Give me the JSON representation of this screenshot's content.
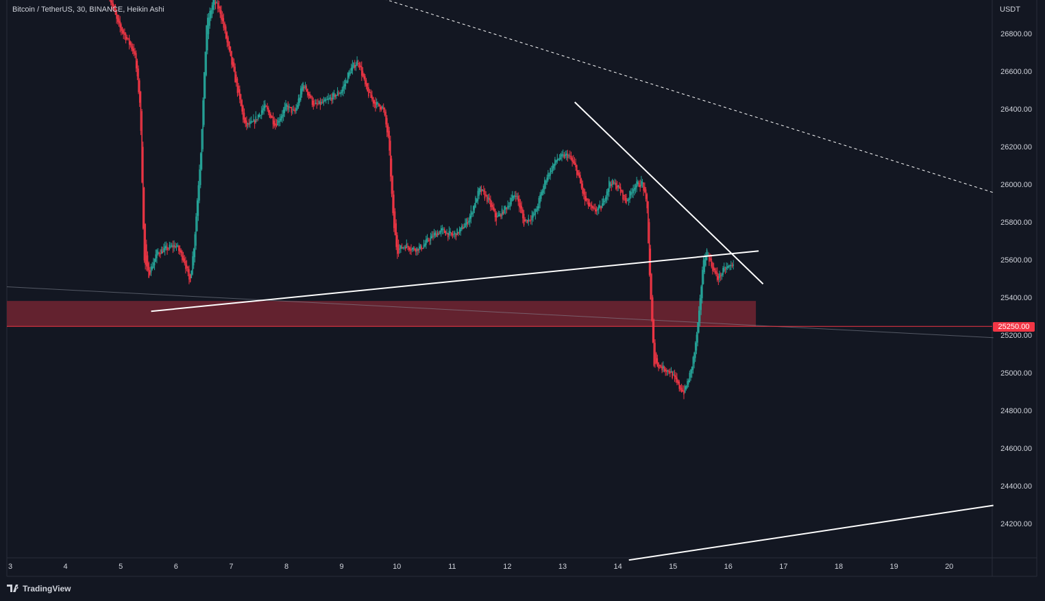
{
  "header": {
    "title": "Bitcoin / TetherUS, 30, BINANCE, Heikin Ashi",
    "currency": "USDT"
  },
  "footer": {
    "brand": "TradingView",
    "logo_icon": "tradingview-logo-icon"
  },
  "colors": {
    "background": "#131722",
    "up": "#26a69a",
    "down": "#f23645",
    "zone": "#63222f",
    "text": "#d1d4dc",
    "trendline": "#ffffff"
  },
  "chart_data": {
    "type": "candlestick",
    "style": "Heikin Ashi",
    "symbol": "Bitcoin / TetherUS",
    "interval": "30",
    "exchange": "BINANCE",
    "y_axis": {
      "ticks": [
        "26800.00",
        "26600.00",
        "26400.00",
        "26200.00",
        "26000.00",
        "25800.00",
        "25600.00",
        "25400.00",
        "25200.00",
        "25000.00",
        "24800.00",
        "24600.00",
        "24400.00",
        "24200.00"
      ],
      "range": [
        24010,
        26995
      ]
    },
    "x_axis": {
      "ticks": [
        "3",
        "4",
        "5",
        "6",
        "7",
        "8",
        "9",
        "10",
        "11",
        "12",
        "13",
        "14",
        "15",
        "16",
        "17",
        "18",
        "19",
        "20"
      ],
      "range": [
        3,
        20.85
      ]
    },
    "last_price": "25250.00",
    "price_path": [
      [
        4.8,
        27000
      ],
      [
        4.95,
        26850
      ],
      [
        5.1,
        26780
      ],
      [
        5.25,
        26700
      ],
      [
        5.35,
        26420
      ],
      [
        5.42,
        25600
      ],
      [
        5.5,
        25520
      ],
      [
        5.65,
        25640
      ],
      [
        5.8,
        25660
      ],
      [
        6.0,
        25680
      ],
      [
        6.15,
        25600
      ],
      [
        6.25,
        25480
      ],
      [
        6.33,
        25700
      ],
      [
        6.45,
        26200
      ],
      [
        6.55,
        26850
      ],
      [
        6.68,
        26980
      ],
      [
        6.8,
        26920
      ],
      [
        6.95,
        26720
      ],
      [
        7.1,
        26520
      ],
      [
        7.25,
        26310
      ],
      [
        7.4,
        26330
      ],
      [
        7.6,
        26420
      ],
      [
        7.8,
        26320
      ],
      [
        8.0,
        26420
      ],
      [
        8.15,
        26380
      ],
      [
        8.3,
        26540
      ],
      [
        8.5,
        26420
      ],
      [
        8.7,
        26440
      ],
      [
        9.0,
        26500
      ],
      [
        9.15,
        26610
      ],
      [
        9.3,
        26660
      ],
      [
        9.45,
        26500
      ],
      [
        9.6,
        26430
      ],
      [
        9.75,
        26410
      ],
      [
        9.85,
        26230
      ],
      [
        9.93,
        25810
      ],
      [
        10.0,
        25650
      ],
      [
        10.15,
        25680
      ],
      [
        10.3,
        25660
      ],
      [
        10.45,
        25670
      ],
      [
        10.6,
        25720
      ],
      [
        10.8,
        25760
      ],
      [
        11.0,
        25730
      ],
      [
        11.15,
        25760
      ],
      [
        11.3,
        25820
      ],
      [
        11.5,
        25980
      ],
      [
        11.65,
        25920
      ],
      [
        11.8,
        25820
      ],
      [
        12.0,
        25890
      ],
      [
        12.15,
        25960
      ],
      [
        12.3,
        25800
      ],
      [
        12.5,
        25850
      ],
      [
        12.7,
        26040
      ],
      [
        12.9,
        26140
      ],
      [
        13.1,
        26160
      ],
      [
        13.25,
        26080
      ],
      [
        13.4,
        25920
      ],
      [
        13.55,
        25860
      ],
      [
        13.7,
        25880
      ],
      [
        13.85,
        26020
      ],
      [
        14.0,
        25990
      ],
      [
        14.15,
        25910
      ],
      [
        14.3,
        26000
      ],
      [
        14.45,
        26010
      ],
      [
        14.53,
        25870
      ],
      [
        14.58,
        25450
      ],
      [
        14.65,
        25060
      ],
      [
        14.8,
        25030
      ],
      [
        14.95,
        25010
      ],
      [
        15.1,
        24930
      ],
      [
        15.2,
        24900
      ],
      [
        15.32,
        25010
      ],
      [
        15.4,
        25140
      ],
      [
        15.48,
        25350
      ],
      [
        15.53,
        25560
      ],
      [
        15.6,
        25660
      ],
      [
        15.7,
        25570
      ],
      [
        15.8,
        25500
      ],
      [
        15.95,
        25560
      ],
      [
        16.05,
        25570
      ],
      [
        16.1,
        25595
      ]
    ],
    "drawings": {
      "support_zone": {
        "x": [
          3,
          16.5
        ],
        "y": [
          25250,
          25385
        ]
      },
      "price_line": 25250,
      "lower_support_line": [
        [
          5.55,
          25330
        ],
        [
          16.55,
          25650
        ]
      ],
      "descending_resistance": [
        [
          13.22,
          26440
        ],
        [
          16.63,
          25475
        ]
      ],
      "dashed_resistance": [
        [
          9.2,
          27040
        ],
        [
          20.8,
          25960
        ]
      ],
      "faint_trendline": [
        [
          3,
          25460
        ],
        [
          20.8,
          25190
        ]
      ],
      "bottom_rising_line": [
        [
          14.2,
          24010
        ],
        [
          20.8,
          24300
        ]
      ]
    }
  }
}
